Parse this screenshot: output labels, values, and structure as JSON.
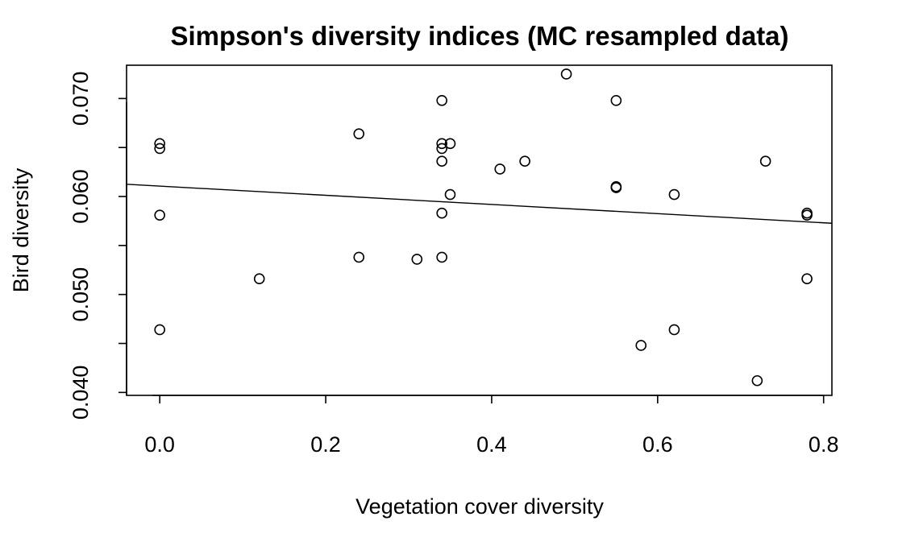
{
  "chart_data": {
    "type": "scatter",
    "title": "Simpson's diversity indices (MC resampled data)",
    "xlabel": "Vegetation cover diversity",
    "ylabel": "Bird diversity",
    "xlim": [
      -0.04,
      0.81
    ],
    "ylim": [
      0.0397,
      0.0734
    ],
    "x_ticks": [
      0.0,
      0.2,
      0.4,
      0.6,
      0.8
    ],
    "x_tick_labels": [
      "0.0",
      "0.2",
      "0.4",
      "0.6",
      "0.8"
    ],
    "y_ticks": [
      0.04,
      0.045,
      0.05,
      0.055,
      0.06,
      0.065,
      0.07
    ],
    "y_tick_labels": [
      "0.040",
      "",
      "0.050",
      "",
      "0.060",
      "",
      "0.070"
    ],
    "grid": false,
    "marker": "open-circle",
    "points": [
      {
        "x": 0.0,
        "y": 0.0654
      },
      {
        "x": 0.0,
        "y": 0.0649
      },
      {
        "x": 0.0,
        "y": 0.0581
      },
      {
        "x": 0.0,
        "y": 0.0464
      },
      {
        "x": 0.12,
        "y": 0.0516
      },
      {
        "x": 0.24,
        "y": 0.0664
      },
      {
        "x": 0.24,
        "y": 0.0538
      },
      {
        "x": 0.31,
        "y": 0.0536
      },
      {
        "x": 0.34,
        "y": 0.0698
      },
      {
        "x": 0.34,
        "y": 0.0654
      },
      {
        "x": 0.34,
        "y": 0.0649
      },
      {
        "x": 0.34,
        "y": 0.0636
      },
      {
        "x": 0.34,
        "y": 0.0583
      },
      {
        "x": 0.34,
        "y": 0.0538
      },
      {
        "x": 0.35,
        "y": 0.0654
      },
      {
        "x": 0.35,
        "y": 0.0602
      },
      {
        "x": 0.41,
        "y": 0.0628
      },
      {
        "x": 0.44,
        "y": 0.0636
      },
      {
        "x": 0.49,
        "y": 0.0725
      },
      {
        "x": 0.55,
        "y": 0.0698
      },
      {
        "x": 0.55,
        "y": 0.061
      },
      {
        "x": 0.55,
        "y": 0.0609
      },
      {
        "x": 0.58,
        "y": 0.0448
      },
      {
        "x": 0.62,
        "y": 0.0602
      },
      {
        "x": 0.62,
        "y": 0.0464
      },
      {
        "x": 0.72,
        "y": 0.0412
      },
      {
        "x": 0.73,
        "y": 0.0636
      },
      {
        "x": 0.78,
        "y": 0.0583
      },
      {
        "x": 0.78,
        "y": 0.0581
      },
      {
        "x": 0.78,
        "y": 0.0516
      }
    ],
    "regression_line": {
      "intercept": 0.06106,
      "slope": -0.00468
    }
  }
}
